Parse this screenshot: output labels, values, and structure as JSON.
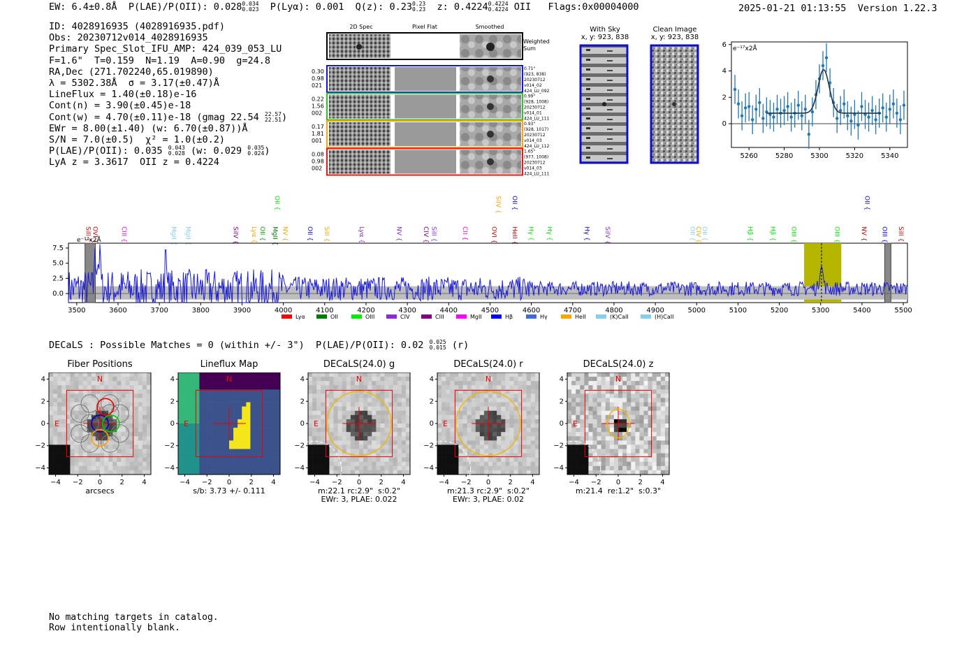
{
  "header": {
    "ew": "EW: 6.4±0.8Å",
    "plae": "P(LAE)/P(OII): 0.028",
    "plae_hi": "0.034",
    "plae_lo": "0.023",
    "plya": "P(Lyα): 0.001",
    "qz": "Q(z): 0.23",
    "qz_hi": "0.23",
    "qz_lo": "0.23",
    "z": "z: 0.4224",
    "z_hi": "0.4224",
    "z_lo": "0.4224",
    "z_line": "OII",
    "flags": "Flags:0x00004000",
    "datetime": "2025-01-21 01:13:55",
    "version": "Version 1.22.3"
  },
  "info": {
    "id": "ID: 4028916935 (4028916935.pdf)",
    "obs": "Obs: 20230712v014_4028916935",
    "slot": "Primary Spec_Slot_IFU_AMP: 424_039_053_LU",
    "params": "F=1.6\"  T=0.159  N=1.19  A=0.90  g=24.8",
    "radec": "RA,Dec (271.702240,65.019890)",
    "lambda": "λ = 5302.38Å  σ = 3.17(±0.47)Å",
    "lineflux": "LineFlux = 1.40(±0.18)e-16",
    "contn": "Cont(n) = 3.90(±0.45)e-18",
    "contw": "Cont(w) = 4.70(±0.11)e-18 (gmag 22.54",
    "contw_hi": "22.57",
    "contw_lo": "22.51",
    "contw_end": ")",
    "ewr": "EWr = 8.00(±1.40) (w: 6.70(±0.87))Å",
    "sn": "S/N = 7.0(±0.5)  χ² = 1.0(±0.2)",
    "plae": "P(LAE)/P(OII): 0.035",
    "plae_hi": "0.043",
    "plae_lo": "0.028",
    "plae_w": "(w: 0.029",
    "plae_w_hi": "0.035",
    "plae_w_lo": "0.024",
    "plae_end": ")",
    "lyaz": "LyA z = 3.3617  OII z = 0.4224"
  },
  "cutouts": {
    "col_2d": "2D Spec",
    "col_flat": "Pixel Flat",
    "col_smooth": "Smoothed",
    "weighted": "Weighted",
    "sum": "Sum",
    "rows": [
      {
        "left": [
          "0.30",
          "0.98",
          "021"
        ],
        "right": [
          "0.71\"",
          "(923, 838)",
          "20230712",
          "v014_02",
          "424_LU_092"
        ],
        "color": "#1010ff"
      },
      {
        "left": [
          "0.22",
          "1.56",
          "002"
        ],
        "right": [
          "0.99\"",
          "(928, 1008)",
          "20230712",
          "v014_01",
          "424_LU_111"
        ],
        "color": "#22cc22"
      },
      {
        "left": [
          "0.17",
          "1.81",
          "001"
        ],
        "right": [
          "0.93\"",
          "(928, 1017)",
          "20230712",
          "v014_03",
          "424_LU_112"
        ],
        "color": "#ffa500"
      },
      {
        "left": [
          "0.08",
          "0.98",
          "002"
        ],
        "right": [
          "1.65\"",
          "(977, 1008)",
          "20230712",
          "v014_03",
          "424_LU_111"
        ],
        "color": "#ff1010"
      }
    ]
  },
  "sky": {
    "with_sky": "With Sky",
    "with_sky_xy": "x, y: 923, 838",
    "clean": "Clean Image",
    "clean_xy": "x, y: 923, 838"
  },
  "chart_data": [
    {
      "type": "scatter",
      "title": "",
      "unit_label": "e⁻¹⁷x2Å",
      "xlim": [
        5250,
        5350
      ],
      "ylim": [
        -1.8,
        6.2
      ],
      "x_ticks": [
        5260,
        5280,
        5300,
        5320,
        5340
      ],
      "y_ticks": [
        0,
        2,
        4,
        6
      ],
      "x": [
        5252,
        5254,
        5256,
        5258,
        5260,
        5262,
        5264,
        5266,
        5268,
        5270,
        5272,
        5274,
        5276,
        5278,
        5280,
        5282,
        5284,
        5286,
        5288,
        5290,
        5292,
        5294,
        5296,
        5298,
        5300,
        5302,
        5304,
        5306,
        5308,
        5310,
        5312,
        5314,
        5316,
        5318,
        5320,
        5322,
        5324,
        5326,
        5328,
        5330,
        5332,
        5334,
        5336,
        5338,
        5340,
        5342,
        5344,
        5346,
        5348
      ],
      "y": [
        2.6,
        1.5,
        0.6,
        1.2,
        1.3,
        0.3,
        1.1,
        1.6,
        0.4,
        0.9,
        0.7,
        0.5,
        1.1,
        0.8,
        1.0,
        1.3,
        0.5,
        0.8,
        1.4,
        0.6,
        1.1,
        -0.8,
        0.9,
        2.2,
        3.4,
        4.4,
        5.0,
        3.1,
        1.6,
        0.4,
        1.0,
        1.5,
        0.6,
        0.2,
        0.7,
        -0.1,
        1.3,
        0.7,
        0.5,
        1.0,
        0.3,
        0.8,
        1.2,
        0.5,
        1.1,
        1.5,
        0.8,
        0.3,
        1.4
      ],
      "err": [
        1.1,
        1.1,
        1.1,
        1.1,
        1.1,
        1.1,
        1.1,
        1.1,
        1.1,
        1.1,
        1.1,
        1.1,
        1.1,
        1.1,
        1.1,
        1.1,
        1.1,
        1.1,
        1.1,
        1.1,
        1.1,
        1.1,
        1.1,
        1.1,
        1.1,
        1.1,
        1.1,
        1.1,
        1.1,
        1.1,
        1.1,
        1.1,
        1.1,
        1.1,
        1.1,
        1.1,
        1.1,
        1.1,
        1.1,
        1.1,
        1.1,
        1.1,
        1.1,
        1.1,
        1.1,
        1.1,
        1.1,
        1.1,
        1.1
      ],
      "fit": {
        "continuum": 0.8,
        "center": 5302.4,
        "sigma": 3.17,
        "peak": 4.1
      }
    },
    {
      "type": "line",
      "title": "",
      "unit_label": "e⁻¹⁷x2Å",
      "xlim": [
        3480,
        5510
      ],
      "ylim": [
        -1.5,
        8.3
      ],
      "x_ticks": [
        3500,
        3600,
        3700,
        3800,
        3900,
        4000,
        4100,
        4200,
        4300,
        4400,
        4500,
        4600,
        4700,
        4800,
        4900,
        5000,
        5100,
        5200,
        5300,
        5400,
        5500
      ],
      "y_ticks": [
        0.0,
        2.5,
        5.0,
        7.5
      ],
      "highlight_band": [
        5260,
        5350
      ],
      "line_marker": 5302,
      "masked_regions": [
        [
          3520,
          3545
        ],
        [
          5455,
          5470
        ]
      ],
      "legend": [
        {
          "label": "Lyα",
          "color": "#ff0000"
        },
        {
          "label": "OII",
          "color": "#007a00"
        },
        {
          "label": "OIII",
          "color": "#00ee00"
        },
        {
          "label": "CIV",
          "color": "#8a2be2"
        },
        {
          "label": "CIII",
          "color": "#800080"
        },
        {
          "label": "MgII",
          "color": "#ff00ff"
        },
        {
          "label": "Hβ",
          "color": "#0000ff"
        },
        {
          "label": "Hγ",
          "color": "#4169e1"
        },
        {
          "label": "HeII",
          "color": "#ffa500"
        },
        {
          "label": "(K)CaII",
          "color": "#87ceeb"
        },
        {
          "label": "(H)CaII",
          "color": "#87ceeb"
        }
      ],
      "line_labels": [
        {
          "name": "SiII",
          "w": 3528,
          "color": "#cc0000",
          "row": 0
        },
        {
          "name": "OVI",
          "w": 3545,
          "color": "#cc0000",
          "row": 0
        },
        {
          "name": "CIII",
          "w": 3615,
          "color": "#ff00ff",
          "row": 0
        },
        {
          "name": "MgII",
          "w": 3735,
          "color": "#87ceeb",
          "row": 0
        },
        {
          "name": "MgII",
          "w": 3770,
          "color": "#87ceeb",
          "row": 0
        },
        {
          "name": "SiIV",
          "w": 3885,
          "color": "#800080",
          "row": 0
        },
        {
          "name": "Lyα",
          "w": 3930,
          "color": "#ffa500",
          "row": 0
        },
        {
          "name": "OII",
          "w": 3950,
          "color": "#00aa00",
          "row": 0
        },
        {
          "name": "MgII",
          "w": 3980,
          "color": "#007a00",
          "row": 0
        },
        {
          "name": "OII",
          "w": 3985,
          "color": "#00ee00",
          "row": 1
        },
        {
          "name": "NV",
          "w": 4005,
          "color": "#ffa500",
          "row": 0
        },
        {
          "name": "OII",
          "w": 4065,
          "color": "#0000ff",
          "row": 0
        },
        {
          "name": "SiII",
          "w": 4105,
          "color": "#ffa500",
          "row": 0
        },
        {
          "name": "Lyα",
          "w": 4190,
          "color": "#8a2be2",
          "row": 0
        },
        {
          "name": "NV",
          "w": 4280,
          "color": "#8a2be2",
          "row": 0
        },
        {
          "name": "CIV",
          "w": 4345,
          "color": "#800080",
          "row": 0
        },
        {
          "name": "SiII",
          "w": 4365,
          "color": "#8a2be2",
          "row": 0
        },
        {
          "name": "CII",
          "w": 4440,
          "color": "#ff00ff",
          "row": 0
        },
        {
          "name": "OVI",
          "w": 4510,
          "color": "#cc0000",
          "row": 0
        },
        {
          "name": "SiIV",
          "w": 4520,
          "color": "#ffa500",
          "row": 1
        },
        {
          "name": "OII",
          "w": 4560,
          "color": "#0000ff",
          "row": 1
        },
        {
          "name": "HeII",
          "w": 4560,
          "color": "#cc0000",
          "row": 0
        },
        {
          "name": "Hγ",
          "w": 4600,
          "color": "#00ee00",
          "row": 0
        },
        {
          "name": "Hγ",
          "w": 4645,
          "color": "#00ee00",
          "row": 0
        },
        {
          "name": "Hγ",
          "w": 4735,
          "color": "#0000ff",
          "row": 0
        },
        {
          "name": "SiIV",
          "w": 4785,
          "color": "#8a2be2",
          "row": 0
        },
        {
          "name": "OII",
          "w": 4990,
          "color": "#87ceeb",
          "row": 0
        },
        {
          "name": "CIV",
          "w": 5005,
          "color": "#ffa500",
          "row": 0
        },
        {
          "name": "OII",
          "w": 5020,
          "color": "#87ceeb",
          "row": 0
        },
        {
          "name": "Hβ",
          "w": 5130,
          "color": "#00ee00",
          "row": 0
        },
        {
          "name": "Hβ",
          "w": 5185,
          "color": "#00ee00",
          "row": 0
        },
        {
          "name": "OIII",
          "w": 5235,
          "color": "#00ee00",
          "row": 0
        },
        {
          "name": "OIII",
          "w": 5340,
          "color": "#00ee00",
          "row": 0
        },
        {
          "name": "NV",
          "w": 5405,
          "color": "#cc0000",
          "row": 0
        },
        {
          "name": "OII",
          "w": 5413,
          "color": "#0000ff",
          "row": 1
        },
        {
          "name": "OIII",
          "w": 5455,
          "color": "#0000ff",
          "row": 0
        },
        {
          "name": "SiII",
          "w": 5495,
          "color": "#cc0000",
          "row": 0
        }
      ]
    }
  ],
  "decals": {
    "summary": "DECaLS : Possible Matches = 0 (within +/- 3\")  P(LAE)/P(OII): 0.02",
    "summary_hi": "0.025",
    "summary_lo": "0.015",
    "summary_end": "(r)",
    "panels": [
      {
        "title": "Fiber Positions",
        "caption": "arcsecs",
        "compass_n": "N",
        "compass_e": "E"
      },
      {
        "title": "Lineflux Map",
        "caption": "s/b: 3.73 +/- 0.111",
        "compass_n": "N",
        "compass_e": "E"
      },
      {
        "title": "DECaLS(24.0) g",
        "caption": "m:22.1 rc:2.9\"  s:0.2\"\nEWr: 3, PLAE: 0.022",
        "compass_n": "N",
        "compass_e": "E"
      },
      {
        "title": "DECaLS(24.0) r",
        "caption": "m:21.3 rc:2.9\"  s:0.2\"\nEWr: 3, PLAE: 0.02",
        "compass_n": "N",
        "compass_e": "E"
      },
      {
        "title": "DECaLS(24.0) z",
        "caption": "m:21.4  re:1.2\"  s:0.3\"",
        "compass_n": "N",
        "compass_e": "E"
      }
    ],
    "axis_ticks": [
      "−4",
      "−2",
      "0",
      "2",
      "4"
    ]
  },
  "footer": {
    "line1": "No matching targets in catalog.",
    "line2": "Row intentionally blank."
  }
}
